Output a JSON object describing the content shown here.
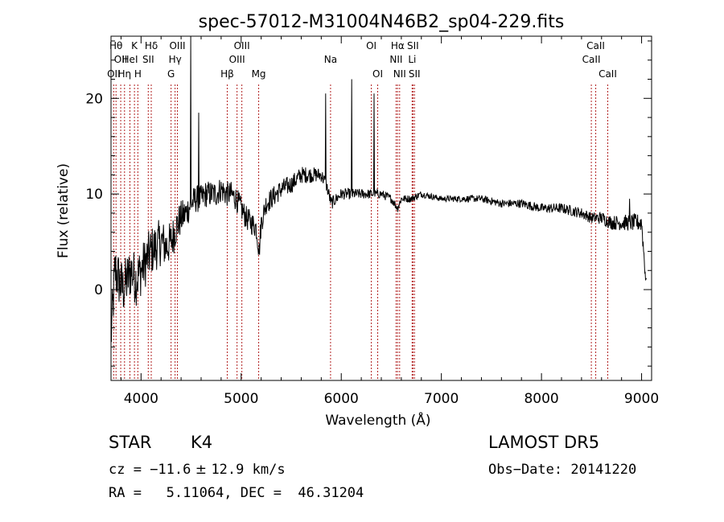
{
  "chart_data": {
    "type": "line",
    "title": "spec-57012-M31004N46B2_sp04-229.fits",
    "xlabel": "Wavelength (Å)",
    "ylabel": "Flux (relative)",
    "xlim": [
      3700,
      9100
    ],
    "ylim": [
      -9.5,
      26.5
    ],
    "x_ticks": [
      4000,
      5000,
      6000,
      7000,
      8000,
      9000
    ],
    "x_tick_labels": [
      "4000",
      "5000",
      "6000",
      "7000",
      "8000",
      "9000"
    ],
    "y_ticks": [
      0,
      10,
      20
    ],
    "y_tick_labels": [
      "0",
      "10",
      "20"
    ],
    "grid": false,
    "line_color": "#000000",
    "marker_color": "#b22222",
    "spectrum_anchor_points": [
      [
        3700,
        -5
      ],
      [
        3740,
        2
      ],
      [
        3780,
        1
      ],
      [
        3820,
        0
      ],
      [
        3860,
        1
      ],
      [
        3900,
        2
      ],
      [
        3950,
        1
      ],
      [
        4000,
        2
      ],
      [
        4050,
        3
      ],
      [
        4100,
        4
      ],
      [
        4150,
        4.5
      ],
      [
        4200,
        5
      ],
      [
        4250,
        4.5
      ],
      [
        4300,
        5
      ],
      [
        4350,
        6.5
      ],
      [
        4400,
        7.5
      ],
      [
        4450,
        8
      ],
      [
        4500,
        9
      ],
      [
        4550,
        9.5
      ],
      [
        4600,
        9.5
      ],
      [
        4650,
        10
      ],
      [
        4700,
        10
      ],
      [
        4750,
        10
      ],
      [
        4800,
        10.5
      ],
      [
        4850,
        10
      ],
      [
        4900,
        10
      ],
      [
        4950,
        9.5
      ],
      [
        5000,
        8.5
      ],
      [
        5050,
        7.5
      ],
      [
        5100,
        7
      ],
      [
        5150,
        6.5
      ],
      [
        5180,
        4
      ],
      [
        5200,
        7
      ],
      [
        5250,
        9
      ],
      [
        5300,
        9.5
      ],
      [
        5400,
        10.5
      ],
      [
        5500,
        11
      ],
      [
        5600,
        12
      ],
      [
        5700,
        12
      ],
      [
        5800,
        12
      ],
      [
        5850,
        11
      ],
      [
        5900,
        9
      ],
      [
        5950,
        9.5
      ],
      [
        6000,
        10
      ],
      [
        6100,
        10
      ],
      [
        6200,
        10
      ],
      [
        6300,
        10
      ],
      [
        6400,
        10
      ],
      [
        6500,
        9.5
      ],
      [
        6563,
        8.5
      ],
      [
        6600,
        9.5
      ],
      [
        6700,
        9.5
      ],
      [
        6800,
        10
      ],
      [
        7000,
        9.5
      ],
      [
        7200,
        9.5
      ],
      [
        7400,
        9.5
      ],
      [
        7600,
        9
      ],
      [
        7800,
        9
      ],
      [
        8000,
        8.5
      ],
      [
        8200,
        8.5
      ],
      [
        8400,
        8
      ],
      [
        8500,
        7.5
      ],
      [
        8600,
        7.5
      ],
      [
        8700,
        7
      ],
      [
        8800,
        7
      ],
      [
        8900,
        7
      ],
      [
        9000,
        7
      ],
      [
        9050,
        0
      ]
    ],
    "noise_amplitude": [
      [
        3700,
        3.0
      ],
      [
        4200,
        2.5
      ],
      [
        4500,
        1.5
      ],
      [
        5200,
        1.2
      ],
      [
        6000,
        0.6
      ],
      [
        7000,
        0.3
      ],
      [
        8500,
        0.6
      ],
      [
        9050,
        1.0
      ]
    ],
    "emission_spikes": [
      {
        "x": 4495,
        "y": 26.5
      },
      {
        "x": 4575,
        "y": 18.5
      },
      {
        "x": 5845,
        "y": 20.5
      },
      {
        "x": 6105,
        "y": 22.0
      },
      {
        "x": 6328,
        "y": 20.5
      },
      {
        "x": 8880,
        "y": 9.5
      }
    ],
    "lines": [
      {
        "x": 3750,
        "label": "Hθ",
        "row": 0
      },
      {
        "x": 3797,
        "label": "OII",
        "row": 1
      },
      {
        "x": 3727,
        "label": "OII",
        "row": 2
      },
      {
        "x": 3835,
        "label": "Hη",
        "row": 2
      },
      {
        "x": 3889,
        "label": "HeI",
        "row": 1
      },
      {
        "x": 3934,
        "label": "K",
        "row": 0
      },
      {
        "x": 3968,
        "label": "H",
        "row": 2
      },
      {
        "x": 4072,
        "label": "SII",
        "row": 1
      },
      {
        "x": 4102,
        "label": "Hδ",
        "row": 0
      },
      {
        "x": 4300,
        "label": "G",
        "row": 2
      },
      {
        "x": 4340,
        "label": "Hγ",
        "row": 1
      },
      {
        "x": 4363,
        "label": "OIII",
        "row": 0
      },
      {
        "x": 4861,
        "label": "Hβ",
        "row": 2
      },
      {
        "x": 4959,
        "label": "OIII",
        "row": 1
      },
      {
        "x": 5007,
        "label": "OIII",
        "row": 0
      },
      {
        "x": 5175,
        "label": "Mg",
        "row": 2
      },
      {
        "x": 5893,
        "label": "Na",
        "row": 1
      },
      {
        "x": 6300,
        "label": "OI",
        "row": 0
      },
      {
        "x": 6364,
        "label": "OI",
        "row": 2
      },
      {
        "x": 6548,
        "label": "NII",
        "row": 1
      },
      {
        "x": 6563,
        "label": "Hα",
        "row": 0
      },
      {
        "x": 6583,
        "label": "NII",
        "row": 2
      },
      {
        "x": 6708,
        "label": "Li",
        "row": 1
      },
      {
        "x": 6716,
        "label": "SII",
        "row": 0
      },
      {
        "x": 6731,
        "label": "SII",
        "row": 2
      },
      {
        "x": 8498,
        "label": "CaII",
        "row": 1
      },
      {
        "x": 8542,
        "label": "CaII",
        "row": 0
      },
      {
        "x": 8662,
        "label": "CaII",
        "row": 2
      }
    ]
  },
  "info": {
    "class": "STAR",
    "subclass": "K4",
    "survey": "LAMOST DR5",
    "cz_label": "cz = ",
    "cz_value": "−11.6",
    "cz_pm": " ± ",
    "cz_err": "12.9",
    "cz_unit": " km/s",
    "obs_date": "Obs−Date: 20141220",
    "ra_dec": "RA =   5.11064, DEC =  46.31204"
  }
}
